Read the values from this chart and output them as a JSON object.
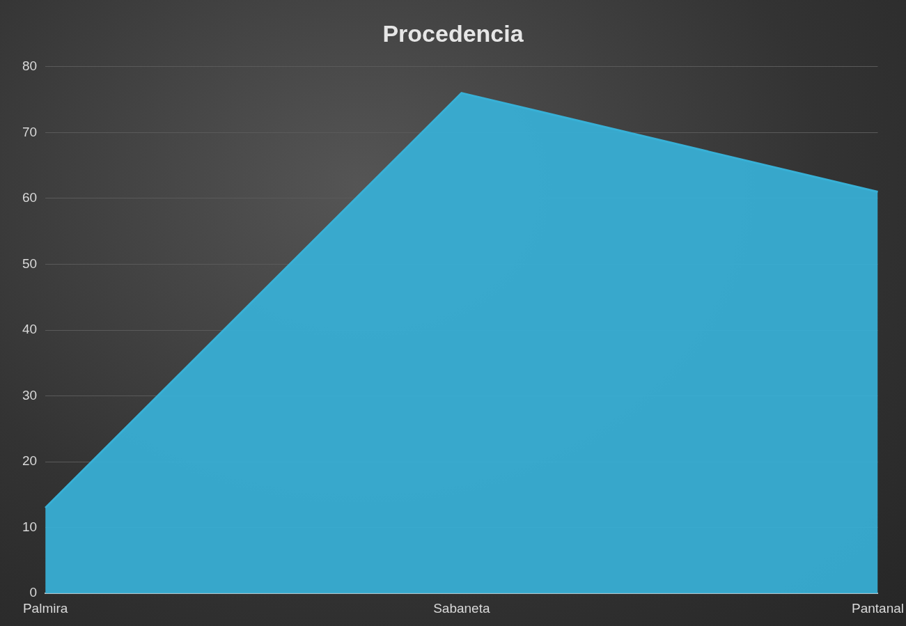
{
  "chart_data": {
    "type": "area",
    "title": "Procedencia",
    "categories": [
      "Palmira",
      "Sabaneta",
      "Pantanal"
    ],
    "series": [
      {
        "color": "#38b0d6",
        "values": [
          13,
          76,
          61
        ]
      }
    ],
    "ylim": [
      0,
      80
    ],
    "yticks": [
      0,
      10,
      20,
      30,
      40,
      50,
      60,
      70,
      80
    ],
    "grid": "y",
    "legend": false
  }
}
